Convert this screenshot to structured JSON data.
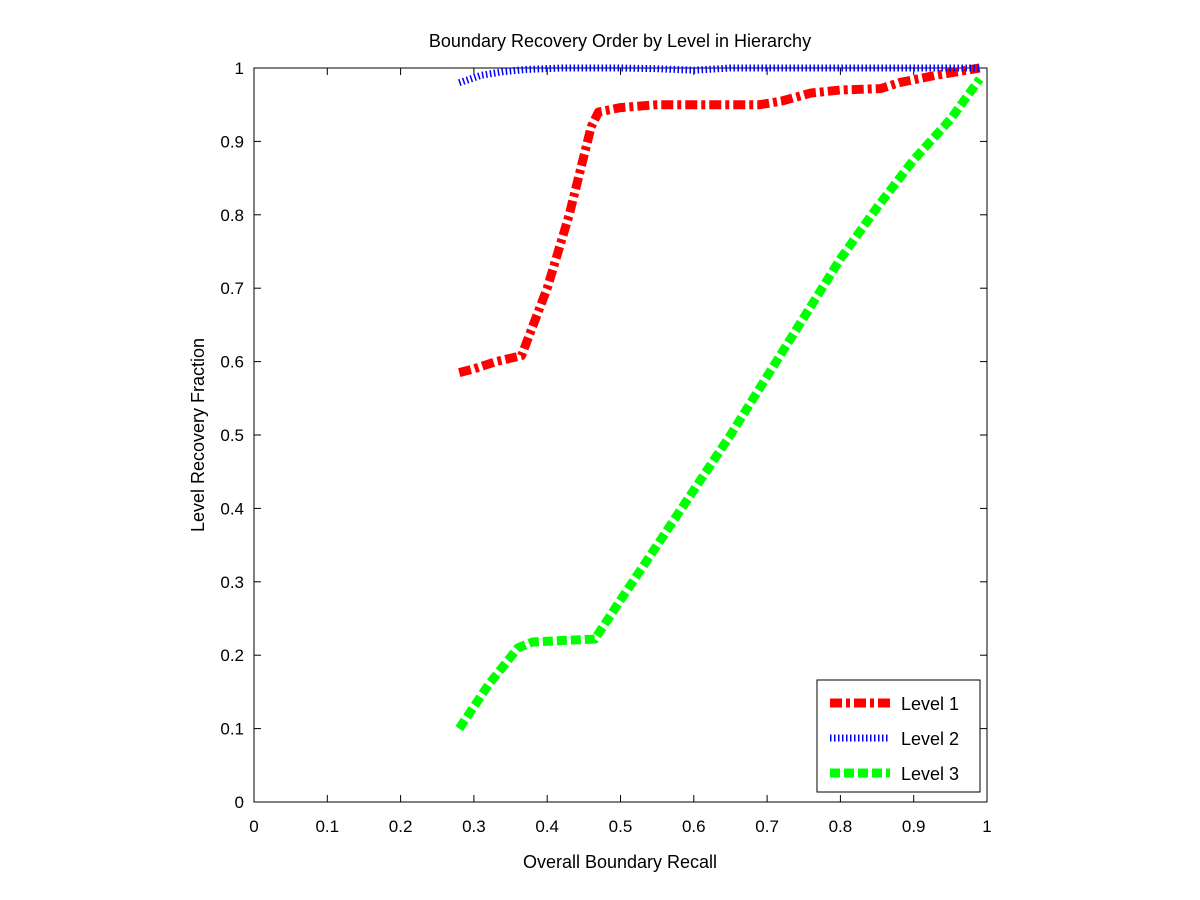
{
  "chart_data": {
    "type": "line",
    "title": "Boundary Recovery Order by Level in Hierarchy",
    "xlabel": "Overall Boundary Recall",
    "ylabel": "Level Recovery Fraction",
    "xlim": [
      0,
      1
    ],
    "ylim": [
      0,
      1
    ],
    "xticks": [
      "0",
      "0.1",
      "0.2",
      "0.3",
      "0.4",
      "0.5",
      "0.6",
      "0.7",
      "0.8",
      "0.9",
      "1"
    ],
    "yticks": [
      "0",
      "0.1",
      "0.2",
      "0.3",
      "0.4",
      "0.5",
      "0.6",
      "0.7",
      "0.8",
      "0.9",
      "1"
    ],
    "grid": false,
    "legend_position": "bottom-right",
    "series": [
      {
        "name": "Level 1",
        "color": "#ff0000",
        "style": "dash-dot",
        "points": [
          [
            0.28,
            0.585
          ],
          [
            0.3,
            0.59
          ],
          [
            0.33,
            0.6
          ],
          [
            0.365,
            0.608
          ],
          [
            0.4,
            0.7
          ],
          [
            0.43,
            0.8
          ],
          [
            0.46,
            0.92
          ],
          [
            0.47,
            0.94
          ],
          [
            0.5,
            0.946
          ],
          [
            0.55,
            0.95
          ],
          [
            0.6,
            0.95
          ],
          [
            0.65,
            0.95
          ],
          [
            0.69,
            0.95
          ],
          [
            0.72,
            0.955
          ],
          [
            0.76,
            0.966
          ],
          [
            0.8,
            0.97
          ],
          [
            0.855,
            0.972
          ],
          [
            0.88,
            0.98
          ],
          [
            0.93,
            0.99
          ],
          [
            0.96,
            0.995
          ],
          [
            0.99,
            1.0
          ]
        ]
      },
      {
        "name": "Level 2",
        "color": "#0000ff",
        "style": "dotted",
        "points": [
          [
            0.28,
            0.98
          ],
          [
            0.31,
            0.99
          ],
          [
            0.34,
            0.995
          ],
          [
            0.37,
            0.998
          ],
          [
            0.42,
            1.0
          ],
          [
            0.5,
            1.0
          ],
          [
            0.55,
            0.999
          ],
          [
            0.6,
            0.997
          ],
          [
            0.65,
            1.0
          ],
          [
            0.7,
            1.0
          ],
          [
            0.75,
            1.0
          ],
          [
            0.85,
            1.0
          ],
          [
            0.95,
            1.0
          ],
          [
            0.99,
            1.0
          ]
        ]
      },
      {
        "name": "Level 3",
        "color": "#00ff00",
        "style": "dashed",
        "points": [
          [
            0.28,
            0.1
          ],
          [
            0.32,
            0.16
          ],
          [
            0.36,
            0.21
          ],
          [
            0.38,
            0.218
          ],
          [
            0.42,
            0.22
          ],
          [
            0.465,
            0.222
          ],
          [
            0.5,
            0.275
          ],
          [
            0.55,
            0.35
          ],
          [
            0.6,
            0.425
          ],
          [
            0.65,
            0.5
          ],
          [
            0.7,
            0.58
          ],
          [
            0.75,
            0.66
          ],
          [
            0.8,
            0.74
          ],
          [
            0.85,
            0.81
          ],
          [
            0.9,
            0.875
          ],
          [
            0.95,
            0.93
          ],
          [
            0.99,
            0.985
          ]
        ]
      }
    ]
  }
}
